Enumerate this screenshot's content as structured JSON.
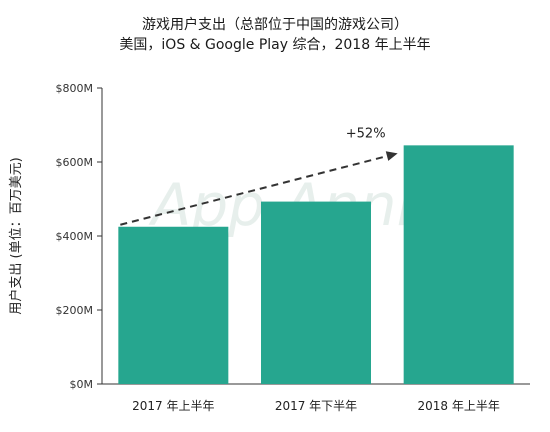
{
  "chart_data": {
    "type": "bar",
    "title": "游戏用户支出（总部位于中国的游戏公司）",
    "subtitle": "美国，iOS & Google Play 综合，2018 年上半年",
    "ylabel": "用户支出 (单位：百万美元)",
    "xlabel": "",
    "categories": [
      "2017 年上半年",
      "2017 年下半年",
      "2018 年上半年"
    ],
    "values": [
      425,
      493,
      645
    ],
    "ylim": [
      0,
      800
    ],
    "yticks": [
      0,
      200,
      400,
      600,
      800
    ],
    "ytick_labels": [
      "$0M",
      "$200M",
      "$400M",
      "$600M",
      "$800M"
    ],
    "annotation": {
      "text": "+52%",
      "from_category": 0,
      "to_category": 2
    },
    "bar_color": "#26a68f",
    "grid": false,
    "watermark": "App Annie"
  }
}
